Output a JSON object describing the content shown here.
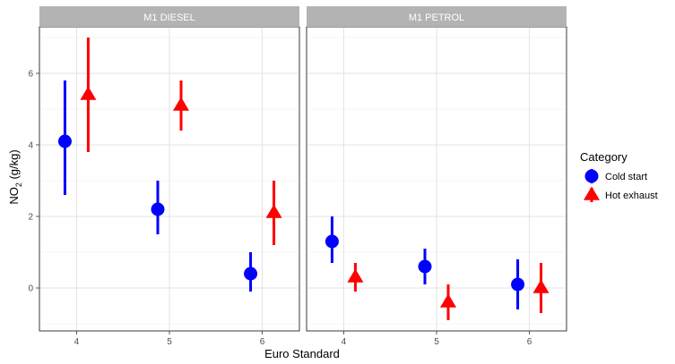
{
  "chart_data": {
    "type": "scatter",
    "subtype": "point-range faceted",
    "xlabel": "Euro Standard",
    "ylabel": {
      "prefix": "NO",
      "subscript": "2",
      "suffix": " (g/kg)"
    },
    "x_ticks": [
      "4",
      "5",
      "6"
    ],
    "y_ticks": [
      0,
      2,
      4,
      6
    ],
    "ylim": [
      -1.2,
      7.3
    ],
    "grid": true,
    "legend": {
      "title": "Category",
      "placement": "right",
      "entries": [
        {
          "name": "Cold start",
          "color": "#0000ff",
          "shape": "circle"
        },
        {
          "name": "Hot exhaust",
          "color": "#ff0000",
          "shape": "triangle"
        }
      ]
    },
    "panels": [
      {
        "title": "M1 DIESEL",
        "series": [
          {
            "name": "Cold start",
            "points": [
              {
                "x": "4",
                "y": 4.1,
                "ymin": 2.6,
                "ymax": 5.8
              },
              {
                "x": "5",
                "y": 2.2,
                "ymin": 1.5,
                "ymax": 3.0
              },
              {
                "x": "6",
                "y": 0.4,
                "ymin": -0.1,
                "ymax": 1.0
              }
            ]
          },
          {
            "name": "Hot exhaust",
            "points": [
              {
                "x": "4",
                "y": 5.4,
                "ymin": 3.8,
                "ymax": 7.0
              },
              {
                "x": "5",
                "y": 5.1,
                "ymin": 4.4,
                "ymax": 5.8
              },
              {
                "x": "6",
                "y": 2.1,
                "ymin": 1.2,
                "ymax": 3.0
              }
            ]
          }
        ]
      },
      {
        "title": "M1 PETROL",
        "series": [
          {
            "name": "Cold start",
            "points": [
              {
                "x": "4",
                "y": 1.3,
                "ymin": 0.7,
                "ymax": 2.0
              },
              {
                "x": "5",
                "y": 0.6,
                "ymin": 0.1,
                "ymax": 1.1
              },
              {
                "x": "6",
                "y": 0.1,
                "ymin": -0.6,
                "ymax": 0.8
              }
            ]
          },
          {
            "name": "Hot exhaust",
            "points": [
              {
                "x": "4",
                "y": 0.3,
                "ymin": -0.1,
                "ymax": 0.7
              },
              {
                "x": "5",
                "y": -0.4,
                "ymin": -0.9,
                "ymax": 0.1
              },
              {
                "x": "6",
                "y": 0.0,
                "ymin": -0.7,
                "ymax": 0.7
              }
            ]
          }
        ]
      }
    ]
  }
}
